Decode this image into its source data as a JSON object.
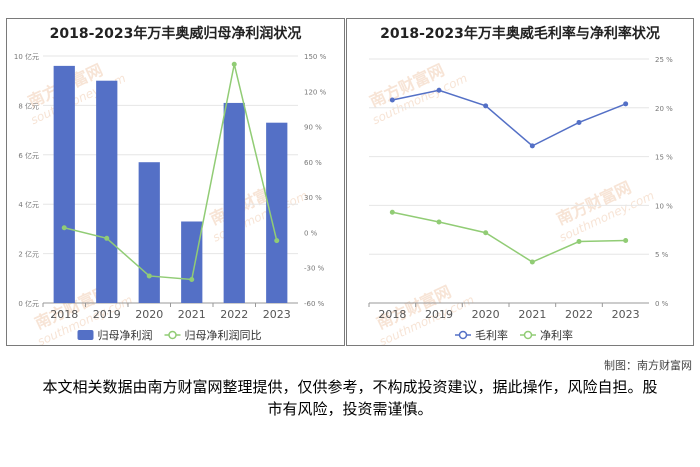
{
  "charts": {
    "left_title": "2018-2023年万丰奥威归母净利润状况",
    "right_title": "2018-2023年万丰奥威毛利率与净利率状况"
  },
  "chart_data": [
    {
      "type": "bar",
      "title": "2018-2023年万丰奥威归母净利润状况",
      "categories": [
        "2018",
        "2019",
        "2020",
        "2021",
        "2022",
        "2023"
      ],
      "series": [
        {
          "name": "归母净利润",
          "type": "bar",
          "axis": "left",
          "values": [
            9.6,
            9.0,
            5.7,
            3.3,
            8.1,
            7.3
          ],
          "color": "#5470c6"
        },
        {
          "name": "归母净利润同比",
          "type": "line",
          "axis": "right",
          "values": [
            4,
            -5,
            -37,
            -40,
            143,
            -7
          ],
          "color": "#91cc75"
        }
      ],
      "left_axis": {
        "ylim": [
          0,
          10
        ],
        "ticks": [
          0,
          2,
          4,
          6,
          8,
          10
        ],
        "tick_labels": [
          "0 亿元",
          "2 亿元",
          "4 亿元",
          "6 亿元",
          "8 亿元",
          "10 亿元"
        ]
      },
      "right_axis": {
        "ylim": [
          -60,
          150
        ],
        "ticks": [
          -60,
          -30,
          0,
          30,
          60,
          90,
          120,
          150
        ],
        "tick_labels": [
          "-60 %",
          "-30 %",
          "0 %",
          "30 %",
          "60 %",
          "90 %",
          "120 %",
          "150 %"
        ]
      },
      "legend_position": "bottom",
      "grid": true
    },
    {
      "type": "line",
      "title": "2018-2023年万丰奥威毛利率与净利率状况",
      "categories": [
        "2018",
        "2019",
        "2020",
        "2021",
        "2022",
        "2023"
      ],
      "series": [
        {
          "name": "毛利率",
          "values": [
            20.8,
            21.8,
            20.2,
            16.1,
            18.5,
            20.4
          ],
          "color": "#5470c6"
        },
        {
          "name": "净利率",
          "values": [
            9.3,
            8.3,
            7.2,
            4.2,
            6.3,
            6.4
          ],
          "color": "#91cc75"
        }
      ],
      "right_axis": {
        "ylim": [
          0,
          25
        ],
        "ticks": [
          0,
          5,
          10,
          15,
          20,
          25
        ],
        "tick_labels": [
          "0 %",
          "5 %",
          "10 %",
          "15 %",
          "20 %",
          "25 %"
        ]
      },
      "legend_position": "bottom",
      "grid": true
    }
  ],
  "footer": {
    "credit": "制图：南方财富网",
    "disclaimer": "本文相关数据由南方财富网整理提供，仅供参考，不构成投资建议，据此操作，风险自担。股市有风险，投资需谨慎。"
  },
  "watermark": {
    "text_cn": "南方财富网",
    "text_en": "southmoney.com"
  }
}
